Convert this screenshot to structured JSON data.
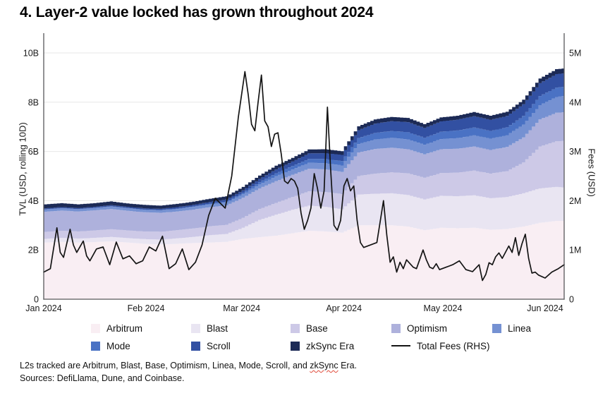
{
  "title": "4. Layer-2 value locked has grown throughout 2024",
  "footnote": {
    "line1_prefix": "L2s tracked are Arbitrum, Blast, Base, Optimism, Linea, Mode, Scroll, and ",
    "line1_misspelled_word": "zkSync",
    "line1_suffix": " Era.",
    "line2": "Sources: DefiLlama, Dune, and Coinbase."
  },
  "colors": {
    "background": "#ffffff",
    "gridline": "#e7e7e7",
    "axis_line": "#58585a",
    "tick_text": "#1a1a1a",
    "fee_line": "#141414",
    "spellcheck_underline": "#e04b3a"
  },
  "legend": {
    "items": [
      {
        "label": "Arbitrum",
        "color": "#f9eef3",
        "type": "swatch",
        "row": 0,
        "col": 0
      },
      {
        "label": "Blast",
        "color": "#e9e5f2",
        "type": "swatch",
        "row": 0,
        "col": 1
      },
      {
        "label": "Base",
        "color": "#cdc9e7",
        "type": "swatch",
        "row": 0,
        "col": 2
      },
      {
        "label": "Optimism",
        "color": "#aeb1dc",
        "type": "swatch",
        "row": 0,
        "col": 3
      },
      {
        "label": "Linea",
        "color": "#7591d2",
        "type": "swatch",
        "row": 0,
        "col": 4
      },
      {
        "label": "Mode",
        "color": "#4a72c4",
        "type": "swatch",
        "row": 1,
        "col": 0
      },
      {
        "label": "Scroll",
        "color": "#3250a2",
        "type": "swatch",
        "row": 1,
        "col": 1
      },
      {
        "label": "zkSync Era",
        "color": "#1c2a56",
        "type": "swatch",
        "row": 1,
        "col": 2
      },
      {
        "label": "Total Fees (RHS)",
        "color": "#141414",
        "type": "line",
        "row": 1,
        "col": 3
      }
    ]
  },
  "chart_data": {
    "type": "area",
    "stacked": true,
    "title": "4. Layer-2 value locked has grown throughout 2024",
    "ylabel_left": "TVL (USD, rolling 10D)",
    "ylabel_right": "Fees (USD)",
    "x_unit": "days since Jan 1, 2024",
    "x_tick_labels": [
      "Jan 2024",
      "Feb 2024",
      "Mar 2024",
      "Apr 2024",
      "May 2024",
      "Jun 2024"
    ],
    "x_tick_days": [
      0,
      31,
      60,
      91,
      121,
      152
    ],
    "x_range_days": [
      0,
      158
    ],
    "yticks_left": {
      "labels": [
        "0",
        "2B",
        "4B",
        "6B",
        "8B",
        "10B"
      ],
      "values": [
        0,
        2,
        4,
        6,
        8,
        10
      ],
      "unit": "USD billions"
    },
    "yticks_right": {
      "labels": [
        "0",
        "1M",
        "2M",
        "3M",
        "4M",
        "5M"
      ],
      "values": [
        0,
        1,
        2,
        3,
        4,
        5
      ],
      "unit": "USD millions"
    },
    "grid": true,
    "legend_position": "bottom",
    "sample_days": [
      0,
      5,
      10,
      15,
      20,
      25,
      30,
      35,
      40,
      45,
      50,
      55,
      60,
      65,
      70,
      75,
      80,
      85,
      90,
      95,
      100,
      105,
      110,
      115,
      120,
      125,
      130,
      135,
      140,
      145,
      150,
      155,
      158
    ],
    "series": [
      {
        "name": "Arbitrum",
        "unit": "USD billions",
        "color": "#f9eef3",
        "values": [
          2.3,
          2.33,
          2.3,
          2.32,
          2.35,
          2.3,
          2.25,
          2.22,
          2.25,
          2.28,
          2.3,
          2.33,
          2.45,
          2.52,
          2.58,
          2.68,
          2.78,
          2.75,
          2.7,
          3.0,
          3.0,
          3.0,
          2.95,
          2.8,
          2.9,
          2.88,
          2.9,
          2.82,
          2.85,
          2.95,
          3.1,
          3.18,
          3.18
        ]
      },
      {
        "name": "Blast",
        "unit": "USD billions",
        "color": "#e9e5f2",
        "values": [
          0.15,
          0.16,
          0.16,
          0.17,
          0.18,
          0.18,
          0.19,
          0.2,
          0.22,
          0.25,
          0.3,
          0.32,
          0.45,
          0.7,
          0.85,
          0.95,
          1.02,
          1.0,
          0.95,
          1.25,
          1.28,
          1.3,
          1.28,
          1.25,
          1.3,
          1.3,
          1.32,
          1.28,
          1.3,
          1.35,
          1.4,
          1.38,
          1.35
        ]
      },
      {
        "name": "Base",
        "unit": "USD billions",
        "color": "#cdc9e7",
        "values": [
          0.28,
          0.29,
          0.29,
          0.3,
          0.31,
          0.31,
          0.31,
          0.32,
          0.33,
          0.34,
          0.36,
          0.37,
          0.4,
          0.44,
          0.48,
          0.52,
          0.58,
          0.6,
          0.62,
          0.75,
          0.82,
          0.85,
          0.88,
          0.88,
          0.92,
          0.96,
          1.0,
          1.0,
          1.05,
          1.25,
          1.7,
          1.85,
          1.9
        ]
      },
      {
        "name": "Optimism",
        "unit": "USD billions",
        "color": "#aeb1dc",
        "values": [
          0.82,
          0.82,
          0.81,
          0.82,
          0.82,
          0.8,
          0.78,
          0.77,
          0.76,
          0.77,
          0.78,
          0.79,
          0.82,
          0.84,
          0.88,
          0.9,
          0.92,
          0.92,
          0.9,
          0.96,
          1.0,
          1.0,
          0.98,
          0.95,
          0.97,
          0.97,
          0.98,
          0.96,
          0.98,
          1.02,
          1.1,
          1.16,
          1.17
        ]
      },
      {
        "name": "Linea",
        "unit": "USD billions",
        "color": "#7591d2",
        "values": [
          0.1,
          0.1,
          0.1,
          0.1,
          0.1,
          0.1,
          0.1,
          0.1,
          0.1,
          0.11,
          0.11,
          0.12,
          0.14,
          0.16,
          0.2,
          0.22,
          0.24,
          0.25,
          0.26,
          0.34,
          0.38,
          0.4,
          0.4,
          0.39,
          0.41,
          0.43,
          0.45,
          0.45,
          0.47,
          0.52,
          0.58,
          0.64,
          0.66
        ]
      },
      {
        "name": "Mode",
        "unit": "USD billions",
        "color": "#4a72c4",
        "values": [
          0.0,
          0.0,
          0.0,
          0.0,
          0.01,
          0.01,
          0.01,
          0.01,
          0.02,
          0.02,
          0.03,
          0.04,
          0.06,
          0.09,
          0.12,
          0.14,
          0.16,
          0.17,
          0.18,
          0.24,
          0.27,
          0.28,
          0.29,
          0.28,
          0.3,
          0.31,
          0.32,
          0.32,
          0.33,
          0.35,
          0.37,
          0.38,
          0.37
        ]
      },
      {
        "name": "Scroll",
        "unit": "USD billions",
        "color": "#3250a2",
        "values": [
          0.04,
          0.04,
          0.04,
          0.04,
          0.05,
          0.05,
          0.05,
          0.05,
          0.06,
          0.06,
          0.07,
          0.08,
          0.1,
          0.13,
          0.16,
          0.18,
          0.22,
          0.24,
          0.25,
          0.32,
          0.38,
          0.4,
          0.41,
          0.4,
          0.42,
          0.44,
          0.46,
          0.45,
          0.46,
          0.48,
          0.52,
          0.55,
          0.55
        ]
      },
      {
        "name": "zkSync Era",
        "unit": "USD billions",
        "color": "#1c2a56",
        "values": [
          0.16,
          0.16,
          0.15,
          0.15,
          0.15,
          0.14,
          0.14,
          0.13,
          0.13,
          0.13,
          0.13,
          0.13,
          0.14,
          0.14,
          0.15,
          0.15,
          0.16,
          0.16,
          0.15,
          0.16,
          0.17,
          0.17,
          0.17,
          0.16,
          0.16,
          0.16,
          0.17,
          0.17,
          0.17,
          0.18,
          0.19,
          0.2,
          0.2
        ]
      }
    ],
    "line_series": {
      "name": "Total Fees (RHS)",
      "unit": "USD millions",
      "color": "#141414",
      "axis": "right",
      "points": [
        [
          0,
          0.55
        ],
        [
          2,
          0.62
        ],
        [
          4,
          1.45
        ],
        [
          5,
          0.95
        ],
        [
          6,
          0.85
        ],
        [
          8,
          1.42
        ],
        [
          9,
          1.1
        ],
        [
          10,
          0.95
        ],
        [
          12,
          1.18
        ],
        [
          13,
          0.88
        ],
        [
          14,
          0.78
        ],
        [
          16,
          1.02
        ],
        [
          18,
          1.06
        ],
        [
          20,
          0.7
        ],
        [
          22,
          1.16
        ],
        [
          24,
          0.82
        ],
        [
          26,
          0.88
        ],
        [
          28,
          0.72
        ],
        [
          30,
          0.78
        ],
        [
          32,
          1.06
        ],
        [
          34,
          0.98
        ],
        [
          36,
          1.28
        ],
        [
          38,
          0.62
        ],
        [
          40,
          0.72
        ],
        [
          42,
          1.02
        ],
        [
          44,
          0.6
        ],
        [
          46,
          0.75
        ],
        [
          48,
          1.1
        ],
        [
          50,
          1.7
        ],
        [
          52,
          2.05
        ],
        [
          55,
          1.85
        ],
        [
          57,
          2.5
        ],
        [
          59,
          3.7
        ],
        [
          61,
          4.62
        ],
        [
          62,
          4.15
        ],
        [
          63,
          3.55
        ],
        [
          64,
          3.42
        ],
        [
          65,
          4.0
        ],
        [
          66,
          4.55
        ],
        [
          67,
          3.62
        ],
        [
          68,
          3.5
        ],
        [
          69,
          3.1
        ],
        [
          70,
          3.35
        ],
        [
          71,
          3.38
        ],
        [
          72,
          2.95
        ],
        [
          73,
          2.4
        ],
        [
          74,
          2.35
        ],
        [
          75,
          2.45
        ],
        [
          76,
          2.4
        ],
        [
          77,
          2.25
        ],
        [
          78,
          1.75
        ],
        [
          79,
          1.42
        ],
        [
          80,
          1.6
        ],
        [
          81,
          1.85
        ],
        [
          82,
          2.55
        ],
        [
          83,
          2.25
        ],
        [
          84,
          1.85
        ],
        [
          85,
          2.2
        ],
        [
          86,
          3.9
        ],
        [
          87,
          2.6
        ],
        [
          88,
          1.5
        ],
        [
          89,
          1.4
        ],
        [
          90,
          1.6
        ],
        [
          91,
          2.3
        ],
        [
          92,
          2.45
        ],
        [
          93,
          2.2
        ],
        [
          94,
          2.3
        ],
        [
          95,
          1.6
        ],
        [
          96,
          1.15
        ],
        [
          97,
          1.05
        ],
        [
          99,
          1.1
        ],
        [
          101,
          1.15
        ],
        [
          103,
          2.0
        ],
        [
          104,
          1.3
        ],
        [
          105,
          0.75
        ],
        [
          106,
          0.86
        ],
        [
          107,
          0.55
        ],
        [
          108,
          0.75
        ],
        [
          109,
          0.62
        ],
        [
          110,
          0.8
        ],
        [
          112,
          0.65
        ],
        [
          113,
          0.62
        ],
        [
          115,
          1.0
        ],
        [
          116,
          0.8
        ],
        [
          117,
          0.65
        ],
        [
          118,
          0.62
        ],
        [
          119,
          0.72
        ],
        [
          120,
          0.6
        ],
        [
          122,
          0.65
        ],
        [
          124,
          0.7
        ],
        [
          126,
          0.78
        ],
        [
          128,
          0.6
        ],
        [
          130,
          0.56
        ],
        [
          132,
          0.7
        ],
        [
          133,
          0.38
        ],
        [
          134,
          0.5
        ],
        [
          135,
          0.74
        ],
        [
          136,
          0.7
        ],
        [
          137,
          0.86
        ],
        [
          138,
          0.94
        ],
        [
          139,
          0.83
        ],
        [
          141,
          1.08
        ],
        [
          142,
          0.95
        ],
        [
          143,
          1.25
        ],
        [
          144,
          0.89
        ],
        [
          145,
          1.13
        ],
        [
          146,
          1.32
        ],
        [
          147,
          0.83
        ],
        [
          148,
          0.53
        ],
        [
          149,
          0.55
        ],
        [
          150,
          0.49
        ],
        [
          152,
          0.43
        ],
        [
          154,
          0.55
        ],
        [
          156,
          0.62
        ],
        [
          158,
          0.7
        ]
      ]
    }
  }
}
